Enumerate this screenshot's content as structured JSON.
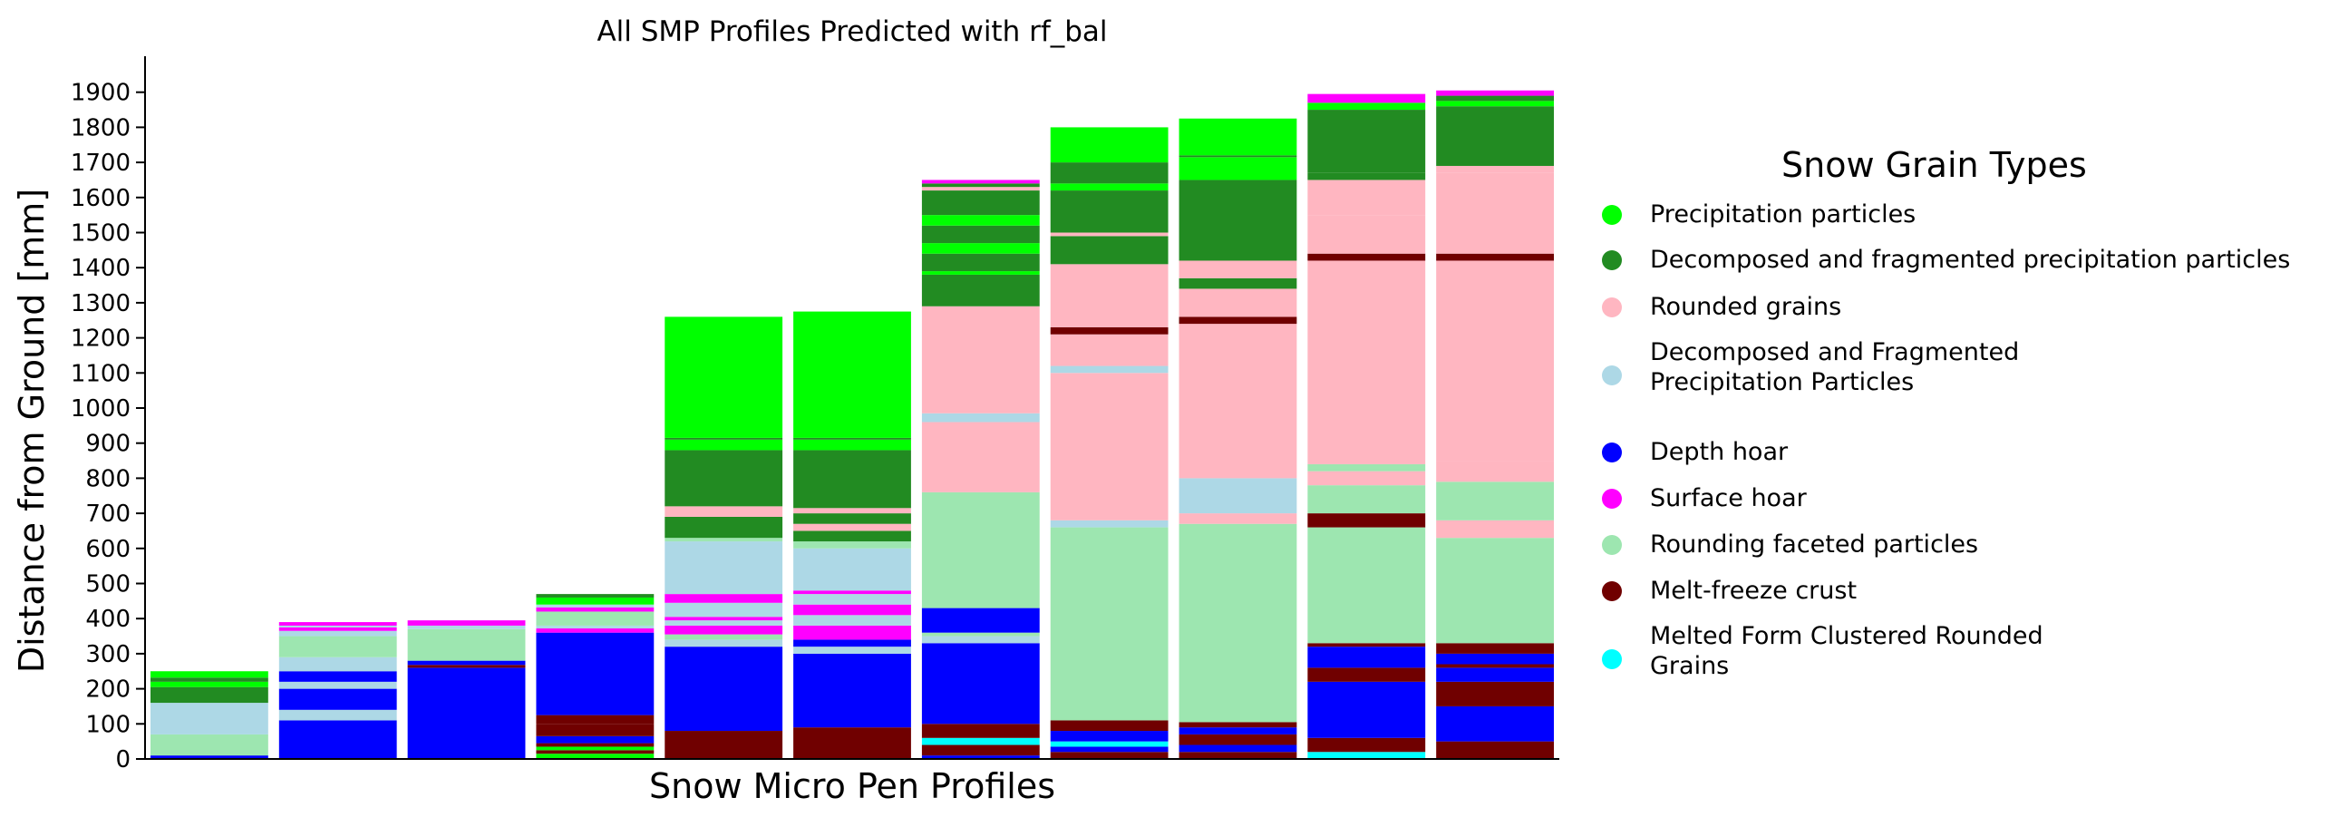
{
  "chart_data": {
    "type": "stacked-bar",
    "title": "All SMP Profiles Predicted with rf_bal",
    "xlabel": "Snow Micro Pen Profiles",
    "ylabel": "Distance from Ground [mm]",
    "ylim": [
      0,
      2000
    ],
    "yticks": [
      0,
      100,
      200,
      300,
      400,
      500,
      600,
      700,
      800,
      900,
      1000,
      1100,
      1200,
      1300,
      1400,
      1500,
      1600,
      1700,
      1800,
      1900
    ],
    "legend": {
      "title": "Snow Grain Types",
      "placement": "right",
      "entries": [
        {
          "label": "Precipitation particles",
          "color": "#00ff00"
        },
        {
          "label": "Decomposed and fragmented precipitation particles",
          "color": "#228b22"
        },
        {
          "label": "Rounded grains",
          "color": "#ffb6c1"
        },
        {
          "label": "Decomposed and Fragmented\nPrecipitation Particles",
          "color": "#add8e6"
        },
        {
          "label": "Depth hoar",
          "color": "#0000ff"
        },
        {
          "label": "Surface hoar",
          "color": "#ff00ff"
        },
        {
          "label": "Rounding faceted particles",
          "color": "#9de6b0"
        },
        {
          "label": "Melt-freeze crust",
          "color": "#700000"
        },
        {
          "label": "Melted Form Clustered Rounded\nGrains",
          "color": "#00ffff"
        }
      ]
    },
    "classes": [
      "pp",
      "df",
      "rg",
      "dfb",
      "dh",
      "sh",
      "rf",
      "mfcr",
      "mfcl"
    ],
    "profiles": [
      {
        "layers": [
          [
            "dh",
            10
          ],
          [
            "rf",
            70
          ],
          [
            "dfb",
            160
          ],
          [
            "df",
            205
          ],
          [
            "pp",
            220
          ],
          [
            "df",
            232
          ],
          [
            "pp",
            250
          ]
        ]
      },
      {
        "layers": [
          [
            "dh",
            110
          ],
          [
            "dfb",
            140
          ],
          [
            "dh",
            200
          ],
          [
            "dfb",
            220
          ],
          [
            "dh",
            250
          ],
          [
            "dfb",
            290
          ],
          [
            "rf",
            350
          ],
          [
            "dfb",
            365
          ],
          [
            "sh",
            375
          ],
          [
            "dfb",
            380
          ],
          [
            "sh",
            390
          ]
        ]
      },
      {
        "layers": [
          [
            "dh",
            260
          ],
          [
            "mfcr",
            268
          ],
          [
            "dh",
            280
          ],
          [
            "rf",
            370
          ],
          [
            "dfb",
            380
          ],
          [
            "sh",
            395
          ]
        ]
      },
      {
        "layers": [
          [
            "pp",
            15
          ],
          [
            "mfcr",
            25
          ],
          [
            "pp",
            35
          ],
          [
            "mfcr",
            45
          ],
          [
            "dh",
            65
          ],
          [
            "mfcr",
            100
          ],
          [
            "mfcr",
            125
          ],
          [
            "dh",
            360
          ],
          [
            "sh",
            372
          ],
          [
            "dfb",
            380
          ],
          [
            "rf",
            420
          ],
          [
            "sh",
            432
          ],
          [
            "dfb",
            440
          ],
          [
            "pp",
            460
          ],
          [
            "df",
            470
          ]
        ]
      },
      {
        "layers": [
          [
            "mfcr",
            80
          ],
          [
            "dh",
            320
          ],
          [
            "dfb",
            340
          ],
          [
            "rf",
            355
          ],
          [
            "sh",
            380
          ],
          [
            "dfb",
            395
          ],
          [
            "sh",
            405
          ],
          [
            "dfb",
            445
          ],
          [
            "sh",
            470
          ],
          [
            "dfb",
            620
          ],
          [
            "rf",
            630
          ],
          [
            "df",
            690
          ],
          [
            "rg",
            720
          ],
          [
            "df",
            880
          ],
          [
            "pp",
            910
          ],
          [
            "df",
            915
          ],
          [
            "pp",
            1260
          ]
        ]
      },
      {
        "layers": [
          [
            "mfcr",
            90
          ],
          [
            "dh",
            300
          ],
          [
            "dfb",
            320
          ],
          [
            "dh",
            340
          ],
          [
            "sh",
            380
          ],
          [
            "dfb",
            410
          ],
          [
            "sh",
            440
          ],
          [
            "dfb",
            470
          ],
          [
            "sh",
            480
          ],
          [
            "dfb",
            600
          ],
          [
            "rf",
            620
          ],
          [
            "df",
            650
          ],
          [
            "rg",
            670
          ],
          [
            "df",
            700
          ],
          [
            "rg",
            715
          ],
          [
            "df",
            880
          ],
          [
            "pp",
            910
          ],
          [
            "df",
            915
          ],
          [
            "pp",
            1275
          ]
        ]
      },
      {
        "layers": [
          [
            "dh",
            10
          ],
          [
            "mfcr",
            40
          ],
          [
            "mfcl",
            60
          ],
          [
            "mfcr",
            100
          ],
          [
            "dh",
            330
          ],
          [
            "dfb",
            350
          ],
          [
            "rf",
            360
          ],
          [
            "dh",
            430
          ],
          [
            "rf",
            760
          ],
          [
            "rg",
            960
          ],
          [
            "dfb",
            985
          ],
          [
            "rg",
            1290
          ],
          [
            "df",
            1380
          ],
          [
            "pp",
            1390
          ],
          [
            "df",
            1440
          ],
          [
            "pp",
            1470
          ],
          [
            "df",
            1520
          ],
          [
            "pp",
            1550
          ],
          [
            "df",
            1620
          ],
          [
            "rg",
            1630
          ],
          [
            "df",
            1640
          ],
          [
            "sh",
            1650
          ]
        ]
      },
      {
        "layers": [
          [
            "mfcr",
            20
          ],
          [
            "dh",
            35
          ],
          [
            "mfcl",
            50
          ],
          [
            "dh",
            80
          ],
          [
            "mfcr",
            110
          ],
          [
            "rf",
            660
          ],
          [
            "dfb",
            680
          ],
          [
            "rg",
            1100
          ],
          [
            "dfb",
            1120
          ],
          [
            "rg",
            1210
          ],
          [
            "mfcr",
            1230
          ],
          [
            "rg",
            1410
          ],
          [
            "df",
            1490
          ],
          [
            "rg",
            1500
          ],
          [
            "df",
            1620
          ],
          [
            "pp",
            1640
          ],
          [
            "df",
            1700
          ],
          [
            "pp",
            1800
          ]
        ]
      },
      {
        "layers": [
          [
            "mfcr",
            20
          ],
          [
            "dh",
            40
          ],
          [
            "mfcr",
            70
          ],
          [
            "dh",
            90
          ],
          [
            "mfcr",
            105
          ],
          [
            "rf",
            670
          ],
          [
            "rg",
            700
          ],
          [
            "dfb",
            800
          ],
          [
            "rg",
            1240
          ],
          [
            "mfcr",
            1260
          ],
          [
            "rg",
            1340
          ],
          [
            "df",
            1370
          ],
          [
            "rg",
            1420
          ],
          [
            "df",
            1650
          ],
          [
            "pp",
            1715
          ],
          [
            "df",
            1720
          ],
          [
            "pp",
            1825
          ]
        ]
      },
      {
        "layers": [
          [
            "mfcl",
            20
          ],
          [
            "mfcr",
            60
          ],
          [
            "dh",
            220
          ],
          [
            "mfcr",
            260
          ],
          [
            "dh",
            320
          ],
          [
            "mfcr",
            330
          ],
          [
            "rf",
            660
          ],
          [
            "mfcr",
            700
          ],
          [
            "rf",
            780
          ],
          [
            "rg",
            820
          ],
          [
            "rf",
            840
          ],
          [
            "rg",
            1420
          ],
          [
            "mfcr",
            1440
          ],
          [
            "rg",
            1550
          ],
          [
            "rg",
            1650
          ],
          [
            "df",
            1670
          ],
          [
            "df",
            1850
          ],
          [
            "pp",
            1870
          ],
          [
            "sh",
            1895
          ]
        ]
      },
      {
        "layers": [
          [
            "mfcr",
            50
          ],
          [
            "dh",
            150
          ],
          [
            "mfcr",
            220
          ],
          [
            "dh",
            260
          ],
          [
            "mfcr",
            270
          ],
          [
            "dh",
            300
          ],
          [
            "mfcr",
            330
          ],
          [
            "rf",
            630
          ],
          [
            "rg",
            680
          ],
          [
            "rf",
            790
          ],
          [
            "rg",
            850
          ],
          [
            "rg",
            1420
          ],
          [
            "mfcr",
            1440
          ],
          [
            "rg",
            1670
          ],
          [
            "rg",
            1690
          ],
          [
            "df",
            1860
          ],
          [
            "pp",
            1875
          ],
          [
            "df",
            1890
          ],
          [
            "sh",
            1905
          ]
        ]
      }
    ]
  }
}
